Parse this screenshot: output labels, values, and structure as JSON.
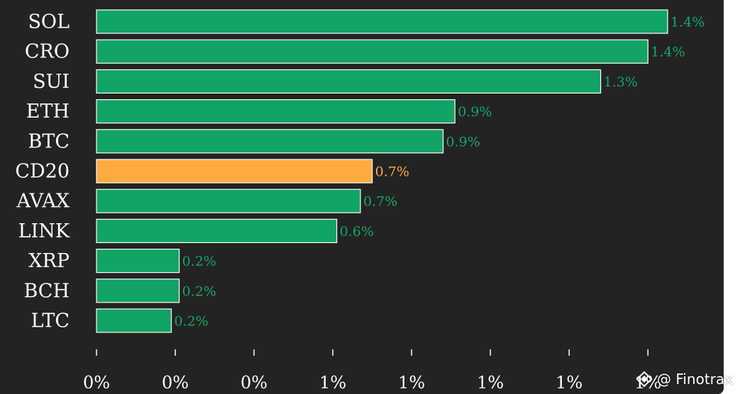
{
  "chart_data": {
    "type": "bar",
    "orientation": "horizontal",
    "title": "",
    "xlabel": "",
    "ylabel": "",
    "grid": false,
    "xlim": [
      0,
      1.45
    ],
    "categories": [
      "SOL",
      "CRO",
      "SUI",
      "ETH",
      "BTC",
      "CD20",
      "AVAX",
      "LINK",
      "XRP",
      "BCH",
      "LTC"
    ],
    "values": [
      1.45,
      1.4,
      1.28,
      0.91,
      0.88,
      0.7,
      0.67,
      0.61,
      0.21,
      0.21,
      0.19
    ],
    "value_labels": [
      "1.4%",
      "1.4%",
      "1.3%",
      "0.9%",
      "0.9%",
      "0.7%",
      "0.7%",
      "0.6%",
      "0.2%",
      "0.2%",
      "0.2%"
    ],
    "highlight_category": "CD20",
    "x_ticks": [
      0,
      0.2,
      0.4,
      0.6,
      0.8,
      1.0,
      1.2,
      1.4
    ],
    "x_tick_labels": [
      "0%",
      "0%",
      "0%",
      "1%",
      "1%",
      "1%",
      "1%",
      "1%"
    ],
    "colors": {
      "background": "#232323",
      "bar": "#12a464",
      "bar_label": "#14a766",
      "highlight_bar": "#ffab40",
      "highlight_label": "#ffab40",
      "text": "#ffffff"
    }
  },
  "watermark": {
    "text": "@ Finotrax",
    "icon": "finotrax-logo-icon"
  }
}
